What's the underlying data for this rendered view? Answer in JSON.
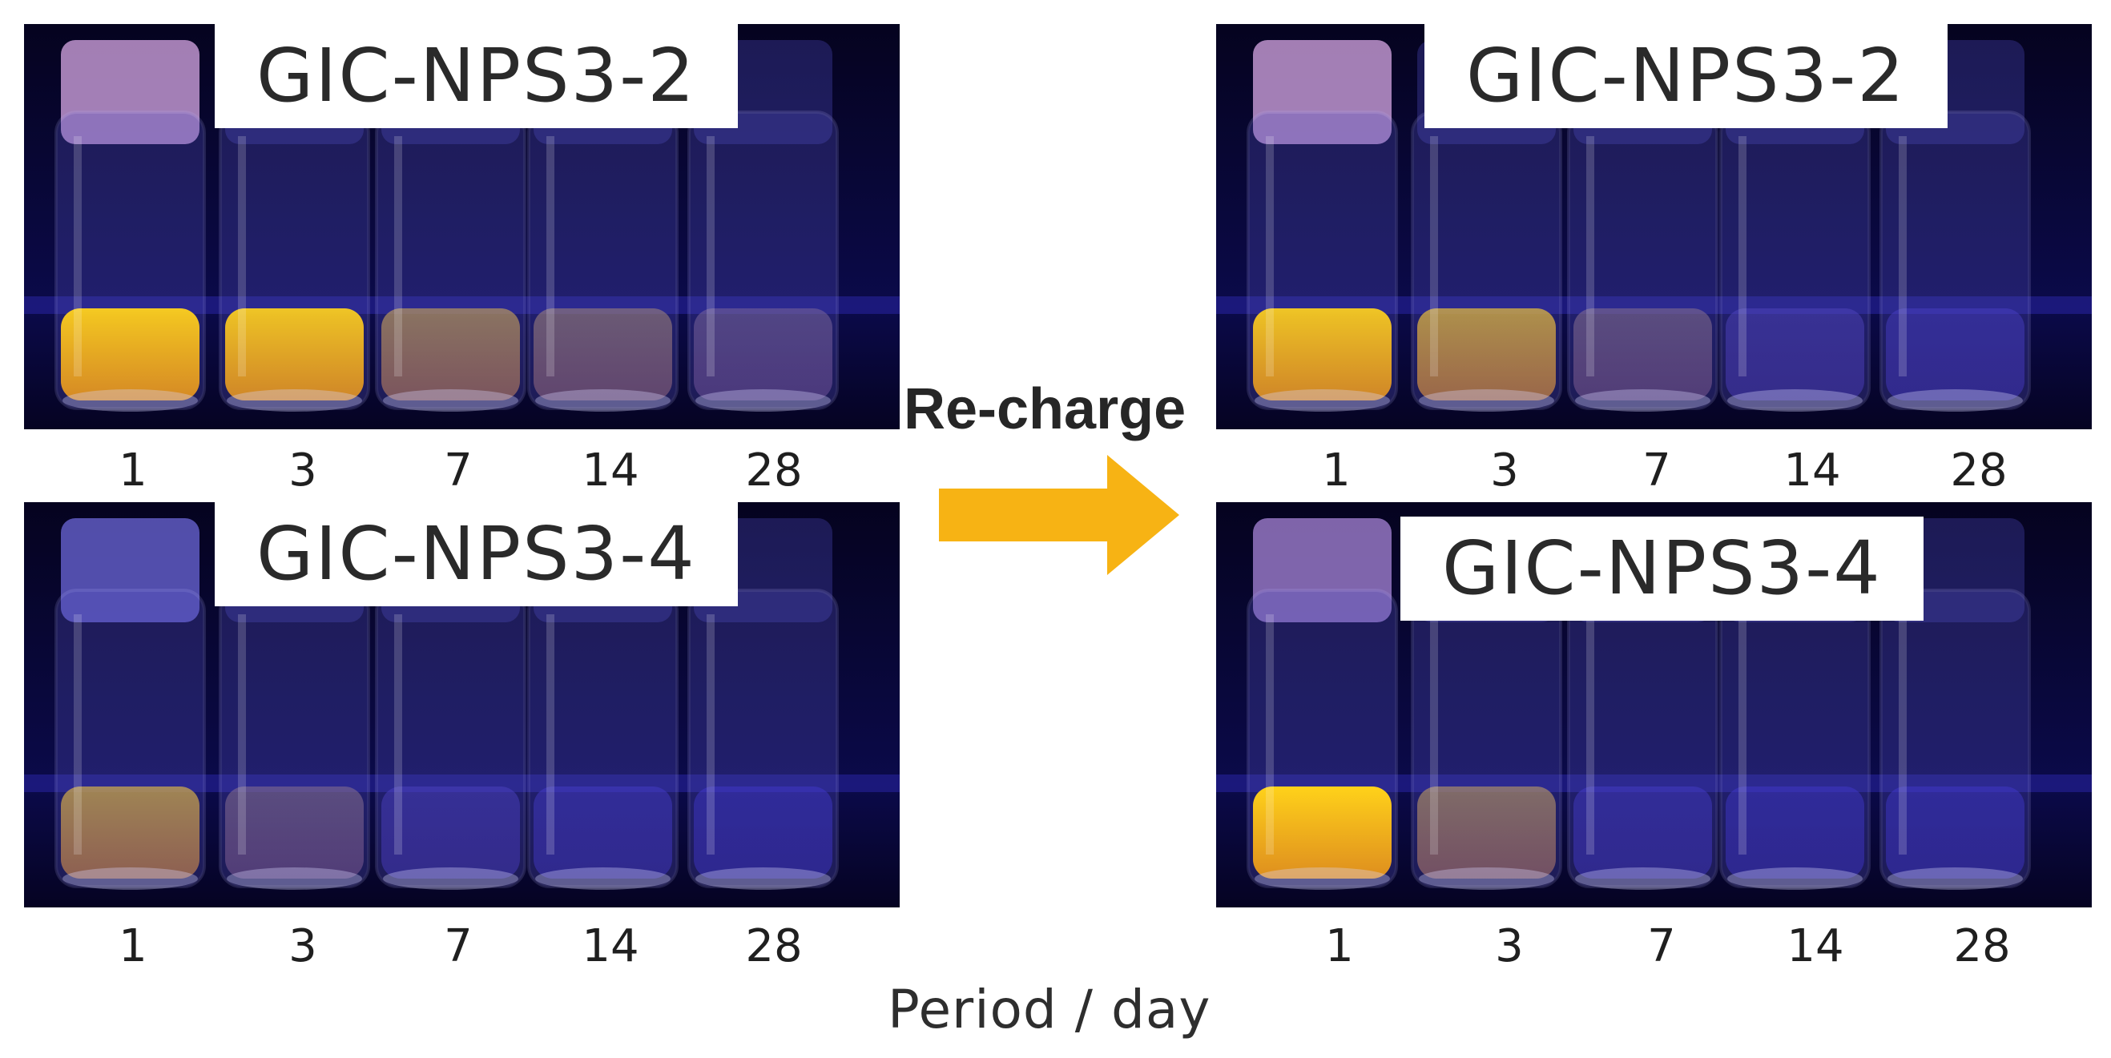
{
  "panels": [
    {
      "id": "before-2",
      "label": "GIC-NPS3-2",
      "glow": [
        0.95,
        0.92,
        0.45,
        0.3,
        0.18
      ],
      "cap_tint": "#d8a8e6"
    },
    {
      "id": "before-4",
      "label": "GIC-NPS3-4",
      "glow": [
        0.55,
        0.22,
        0.05,
        0.03,
        0.02
      ],
      "cap_tint": "#6c67d8"
    },
    {
      "id": "after-2",
      "label": "GIC-NPS3-2",
      "glow": [
        0.92,
        0.62,
        0.22,
        0.06,
        0.04
      ],
      "cap_tint": "#d8a8e6"
    },
    {
      "id": "after-4",
      "label": "GIC-NPS3-4",
      "glow": [
        1.0,
        0.4,
        0.03,
        0.02,
        0.02
      ],
      "cap_tint": "#a885d8"
    }
  ],
  "days": [
    "1",
    "3",
    "7",
    "14",
    "28"
  ],
  "arrow_label": "Re-charge",
  "axis_label": "Period / day",
  "colors": {
    "glow": "#ffd21a",
    "uv_blue": "#3a34d6",
    "arrow": "#f7b314",
    "background": "#ffffff"
  }
}
